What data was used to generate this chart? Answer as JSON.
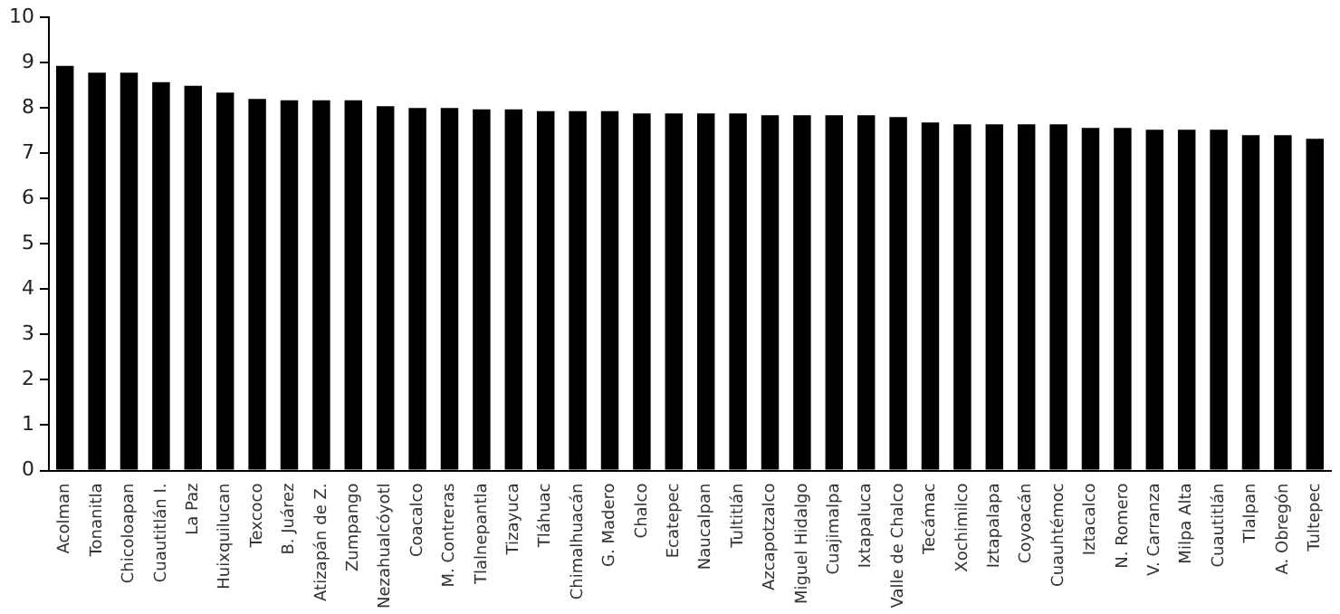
{
  "chart_data": {
    "type": "bar",
    "categories": [
      "Acolman",
      "Tonanitla",
      "Chicoloapan",
      "Cuautitlán I.",
      "La Paz",
      "Huixquilucan",
      "Texcoco",
      "B. Juárez",
      "Atizapán de Z.",
      "Zumpango",
      "Nezahualcóyotl",
      "Coacalco",
      "M. Contreras",
      "Tlalnepantla",
      "Tizayuca",
      "Tláhuac",
      "Chimalhuacán",
      "G. Madero",
      "Chalco",
      "Ecatepec",
      "Naucalpan",
      "Tultitlán",
      "Azcapotzalco",
      "Miguel Hidalgo",
      "Cuajimalpa",
      "Ixtapaluca",
      "Valle de Chalco",
      "Tecámac",
      "Xochimilco",
      "Iztapalapa",
      "Coyoacán",
      "Cuauhtémoc",
      "Iztacalco",
      "N. Romero",
      "V. Carranza",
      "Milpa Alta",
      "Cuautitlán",
      "Tlalpan",
      "A. Obregón",
      "Tultepec"
    ],
    "values": [
      8.93,
      8.78,
      8.78,
      8.57,
      8.49,
      8.34,
      8.2,
      8.17,
      8.17,
      8.17,
      8.04,
      8.0,
      8.0,
      7.97,
      7.97,
      7.93,
      7.93,
      7.93,
      7.88,
      7.88,
      7.88,
      7.88,
      7.84,
      7.84,
      7.84,
      7.84,
      7.8,
      7.68,
      7.64,
      7.64,
      7.64,
      7.64,
      7.56,
      7.56,
      7.52,
      7.52,
      7.52,
      7.4,
      7.4,
      7.32
    ],
    "color": "#000000",
    "ylim": [
      0,
      10
    ],
    "yticks": [
      0,
      1,
      2,
      3,
      4,
      5,
      6,
      7,
      8,
      9,
      10
    ],
    "grid": false,
    "legend": false
  }
}
